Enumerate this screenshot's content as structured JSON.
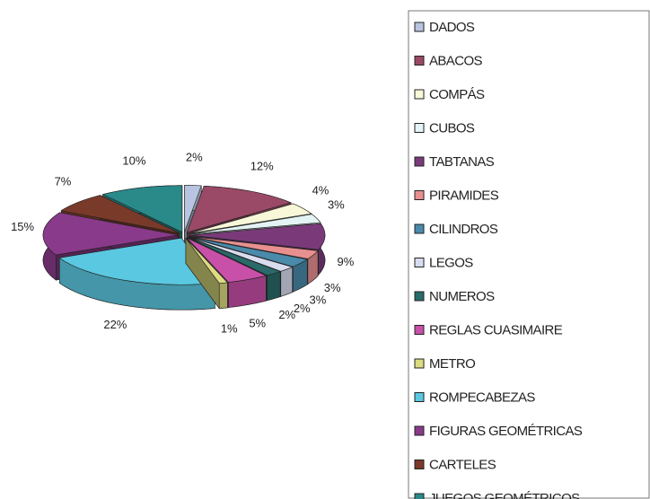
{
  "chart_data": {
    "type": "pie",
    "categories": [
      "DADOS",
      "ABACOS",
      "COMPÁS",
      "CUBOS",
      "TABTANAS",
      "PIRAMIDES",
      "CILINDROS",
      "LEGOS",
      "NUMEROS",
      "REGLAS CUASIMAIRE",
      "METRO",
      "ROMPECABEZAS",
      "FIGURAS GEOMÉTRICAS",
      "CARTELES",
      "JUEGOS GEOMÉTRICOS"
    ],
    "values": [
      2,
      12,
      4,
      3,
      9,
      3,
      3,
      2,
      2,
      5,
      1,
      22,
      15,
      7,
      10
    ],
    "value_labels": [
      "2%",
      "12%",
      "4%",
      "3%",
      "9%",
      "3%",
      "3%",
      "2%",
      "2%",
      "5%",
      "1%",
      "22%",
      "15%",
      "7%",
      "10%"
    ],
    "colors": [
      "#b8c4e0",
      "#9a4a66",
      "#f8f8d8",
      "#e4f4f4",
      "#7a3a7a",
      "#e89090",
      "#4a8aaa",
      "#d8dcef",
      "#2a6a6a",
      "#c850a8",
      "#dcdc80",
      "#5ac8e0",
      "#8a3a8a",
      "#7a3a2a",
      "#2a8a8a"
    ],
    "legend": "right"
  }
}
